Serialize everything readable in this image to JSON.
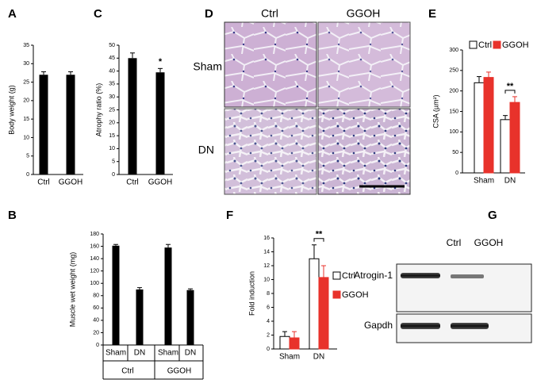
{
  "chart_data": [
    {
      "type": "bar",
      "panel": "A",
      "y_label": "Body weight (g)",
      "categories": [
        "Ctrl",
        "GGOH"
      ],
      "values": [
        27,
        27
      ],
      "errors": [
        0.8,
        0.8
      ],
      "color": "#000000",
      "ylim": [
        0,
        35
      ],
      "yticks": [
        0,
        5,
        10,
        15,
        20,
        25,
        30,
        35
      ]
    },
    {
      "type": "bar",
      "panel": "C",
      "y_label": "Atrophy ratio (%)",
      "categories": [
        "Ctrl",
        "GGOH"
      ],
      "values": [
        45,
        39.5
      ],
      "errors": [
        2,
        1.5
      ],
      "color": "#000000",
      "ylim": [
        0,
        50
      ],
      "yticks": [
        0,
        5,
        10,
        15,
        20,
        25,
        30,
        35,
        40,
        45,
        50
      ],
      "annotation": "*"
    },
    {
      "type": "grouped_bar",
      "panel": "E",
      "y_label": "CSA (µm²)",
      "categories": [
        "Sham",
        "DN"
      ],
      "series": [
        {
          "name": "Ctrl",
          "color": "#ffffff",
          "values": [
            220,
            130
          ],
          "errors": [
            15,
            10
          ]
        },
        {
          "name": "GGOH",
          "color": "#e8322b",
          "values": [
            233,
            172
          ],
          "errors": [
            13,
            14
          ]
        }
      ],
      "ylim": [
        0,
        300
      ],
      "yticks": [
        0,
        50,
        100,
        150,
        200,
        250,
        300
      ],
      "annotation": "**"
    },
    {
      "type": "bar",
      "panel": "B",
      "y_label": "Muscle wet  weight (mg)",
      "categories": [
        "Sham",
        "DN",
        "Sham",
        "DN"
      ],
      "groups": [
        "Ctrl",
        "GGOH"
      ],
      "values": [
        161,
        90,
        158,
        89
      ],
      "errors": [
        2,
        3,
        5,
        2
      ],
      "color": "#000000",
      "ylim": [
        0,
        180
      ],
      "yticks": [
        0,
        20,
        40,
        60,
        80,
        100,
        120,
        140,
        160,
        180
      ]
    },
    {
      "type": "grouped_bar",
      "panel": "F",
      "y_label": "Fold induction",
      "categories": [
        "Sham",
        "DN"
      ],
      "series": [
        {
          "name": "Ctrl",
          "color": "#ffffff",
          "values": [
            1.8,
            13
          ],
          "errors": [
            0.7,
            2
          ]
        },
        {
          "name": "GGOH",
          "color": "#e8322b",
          "values": [
            1.6,
            10.3
          ],
          "errors": [
            0.9,
            1.7
          ]
        }
      ],
      "ylim": [
        0,
        16
      ],
      "yticks": [
        0,
        2,
        4,
        6,
        8,
        10,
        12,
        14,
        16
      ],
      "annotation": "**"
    }
  ],
  "micrographs": {
    "panel": "D",
    "columns": [
      "Ctrl",
      "GGOH"
    ],
    "rows": [
      "Sham",
      "DN"
    ]
  },
  "blot": {
    "panel": "G",
    "lanes": [
      "Ctrl",
      "GGOH"
    ],
    "bands": [
      "Atrogin-1",
      "Gapdh"
    ]
  }
}
